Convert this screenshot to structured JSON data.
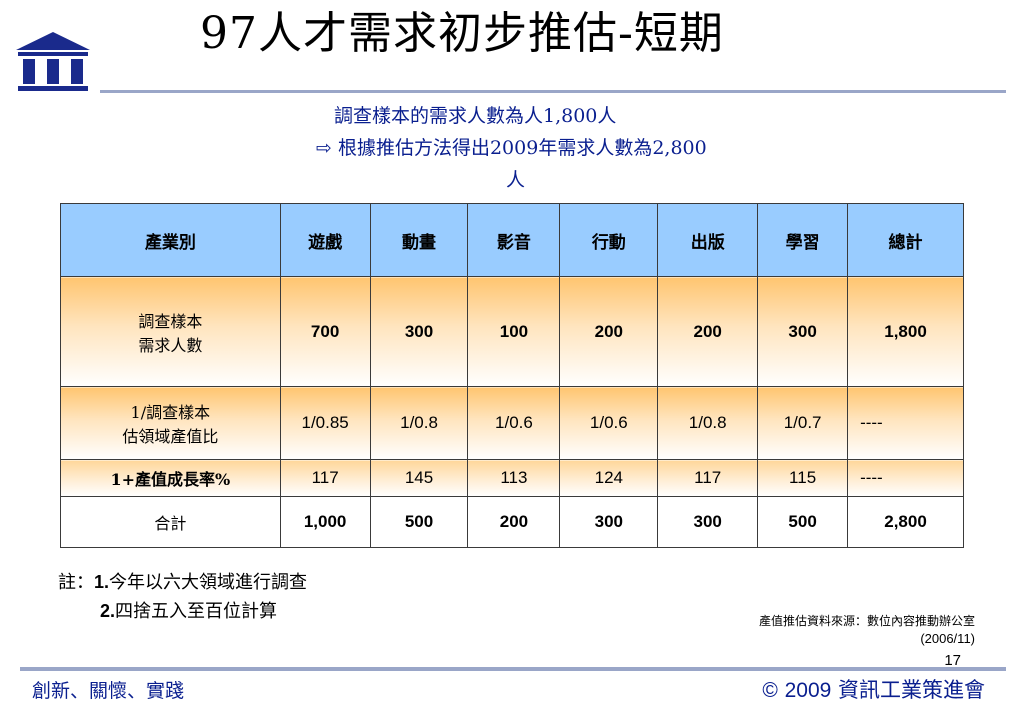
{
  "header": {
    "title": "97人才需求初步推估-短期"
  },
  "summary": {
    "line1": "調查樣本的需求人數為人1,800人",
    "arrow_icon": "right-arrow-icon",
    "line2": "根據推估方法得出2009年需求人數為2,800",
    "line3": "人"
  },
  "table": {
    "headers": [
      "產業別",
      "遊戲",
      "動畫",
      "影音",
      "行動",
      "出版",
      "學習",
      "總計"
    ],
    "rows": [
      {
        "label_line1": "調查樣本",
        "label_line2": "需求人數",
        "cells": [
          "700",
          "300",
          "100",
          "200",
          "200",
          "300",
          "1,800"
        ]
      },
      {
        "label_line1": "1/調查樣本",
        "label_line2": "估領域產值比",
        "cells": [
          "1/0.85",
          "1/0.8",
          "1/0.6",
          "1/0.6",
          "1/0.8",
          "1/0.7",
          "----"
        ]
      },
      {
        "label": "1+產值成長率%",
        "cells": [
          "117",
          "145",
          "113",
          "124",
          "117",
          "115",
          "----"
        ]
      },
      {
        "label": "合計",
        "cells": [
          "1,000",
          "500",
          "200",
          "300",
          "300",
          "500",
          "2,800"
        ]
      }
    ]
  },
  "notes": {
    "prefix": "註：",
    "n1_num": "1.",
    "n1_text": "今年以六大領域進行調查",
    "n2_num": "2.",
    "n2_text": "四捨五入至百位計算"
  },
  "source": {
    "text": "產值推估資料來源：數位內容推動辦公室",
    "date": "(2006/11)"
  },
  "page_number": "17",
  "footer": {
    "left": "創新、關懷、實踐",
    "copyright_symbol": "©",
    "year": "2009",
    "org": "資訊工業策進會"
  },
  "colors": {
    "accent_blue": "#0a1f8f",
    "header_fill": "#99ccff",
    "gradient_orange": "#ffc570",
    "rule": "#9aa6c8"
  },
  "logo_icon": "iii-building-logo-icon"
}
